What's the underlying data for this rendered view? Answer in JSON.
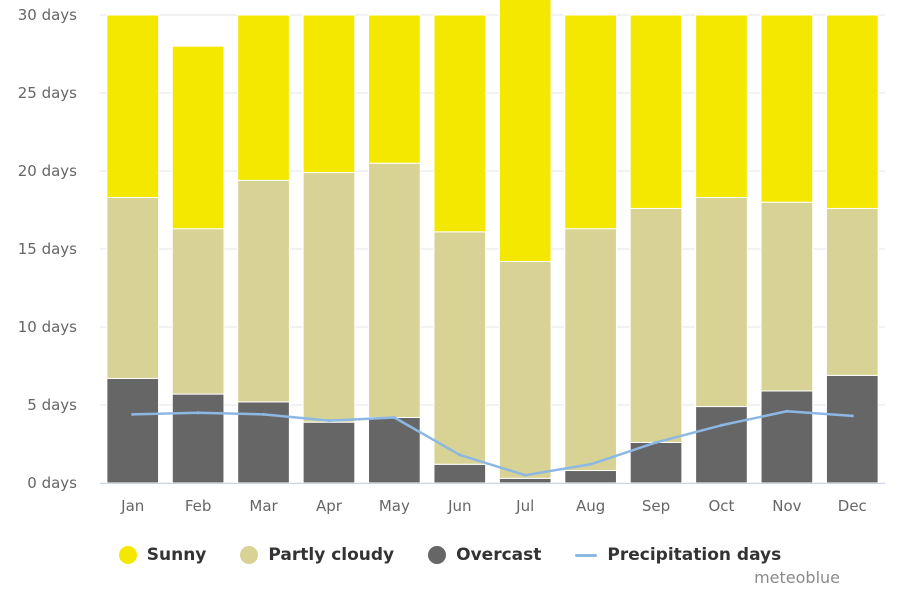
{
  "chart_data": {
    "type": "bar",
    "stacked": true,
    "title": "",
    "xlabel": "",
    "ylabel": "",
    "categories": [
      "Jan",
      "Feb",
      "Mar",
      "Apr",
      "May",
      "Jun",
      "Jul",
      "Aug",
      "Sep",
      "Oct",
      "Nov",
      "Dec"
    ],
    "yticks": [
      "0 days",
      "5 days",
      "10 days",
      "15 days",
      "20 days",
      "25 days",
      "30 days"
    ],
    "ylim": [
      0,
      30
    ],
    "grid": true,
    "legend_position": "bottom",
    "series": [
      {
        "name": "Overcast",
        "color": "#666666",
        "values": [
          6.7,
          5.7,
          5.2,
          3.9,
          4.2,
          1.2,
          0.3,
          0.8,
          2.6,
          4.9,
          5.9,
          6.9
        ]
      },
      {
        "name": "Partly cloudy",
        "color": "#d8d294",
        "values": [
          11.6,
          10.6,
          14.2,
          16.0,
          16.3,
          14.9,
          13.9,
          15.5,
          15.0,
          13.4,
          12.1,
          10.7
        ]
      },
      {
        "name": "Sunny",
        "color": "#f4e800",
        "values": [
          11.7,
          11.7,
          10.6,
          10.1,
          9.5,
          13.9,
          16.8,
          13.7,
          12.4,
          11.7,
          12.0,
          12.4
        ]
      }
    ],
    "line_series": {
      "name": "Precipitation days",
      "color": "#8db8e4",
      "values": [
        4.4,
        4.5,
        4.4,
        4.0,
        4.2,
        1.8,
        0.5,
        1.2,
        2.6,
        3.7,
        4.6,
        4.3
      ]
    }
  },
  "legend": [
    {
      "label": "Sunny",
      "color": "#f4e800",
      "kind": "dot"
    },
    {
      "label": "Partly cloudy",
      "color": "#d8d294",
      "kind": "dot"
    },
    {
      "label": "Overcast",
      "color": "#666666",
      "kind": "dot"
    },
    {
      "label": "Precipitation days",
      "color": "#8db8e4",
      "kind": "line"
    }
  ],
  "credit": "meteoblue"
}
